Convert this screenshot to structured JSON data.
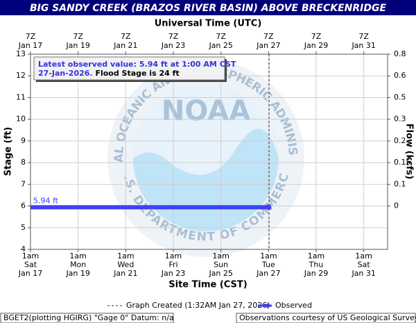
{
  "chart_data": {
    "type": "line",
    "title": "BIG SANDY CREEK (BRAZOS RIVER BASIN) ABOVE BRECKENRIDGE",
    "top_axis_label": "Universal Time (UTC)",
    "xlabel": "Site Time (CST)",
    "ylabel": "Stage (ft)",
    "y2label": "Flow (kcfs)",
    "xlim": [
      "2026-01-17T01:00",
      "2026-02-01T01:00"
    ],
    "xticks": [
      {
        "value": "2026-01-17T01:00",
        "label": [
          "1am",
          "Sat",
          "Jan 17"
        ]
      },
      {
        "value": "2026-01-19T01:00",
        "label": [
          "1am",
          "Mon",
          "Jan 19"
        ]
      },
      {
        "value": "2026-01-21T01:00",
        "label": [
          "1am",
          "Wed",
          "Jan 21"
        ]
      },
      {
        "value": "2026-01-23T01:00",
        "label": [
          "1am",
          "Fri",
          "Jan 23"
        ]
      },
      {
        "value": "2026-01-25T01:00",
        "label": [
          "1am",
          "Sun",
          "Jan 25"
        ]
      },
      {
        "value": "2026-01-27T01:00",
        "label": [
          "1am",
          "Tue",
          "Jan 27"
        ]
      },
      {
        "value": "2026-01-29T01:00",
        "label": [
          "1am",
          "Thu",
          "Jan 29"
        ]
      },
      {
        "value": "2026-01-31T01:00",
        "label": [
          "1am",
          "Sat",
          "Jan 31"
        ]
      }
    ],
    "x2ticks": [
      {
        "value": "2026-01-17T01:00",
        "label": [
          "7Z",
          "Jan 17"
        ]
      },
      {
        "value": "2026-01-19T01:00",
        "label": [
          "7Z",
          "Jan 19"
        ]
      },
      {
        "value": "2026-01-21T01:00",
        "label": [
          "7Z",
          "Jan 21"
        ]
      },
      {
        "value": "2026-01-23T01:00",
        "label": [
          "7Z",
          "Jan 23"
        ]
      },
      {
        "value": "2026-01-25T01:00",
        "label": [
          "7Z",
          "Jan 25"
        ]
      },
      {
        "value": "2026-01-27T01:00",
        "label": [
          "7Z",
          "Jan 27"
        ]
      },
      {
        "value": "2026-01-29T01:00",
        "label": [
          "7Z",
          "Jan 29"
        ]
      },
      {
        "value": "2026-01-31T01:00",
        "label": [
          "7Z",
          "Jan 31"
        ]
      }
    ],
    "ylim": [
      4,
      13
    ],
    "yticks": [
      4,
      5,
      6,
      7,
      8,
      9,
      10,
      11,
      12,
      13
    ],
    "y2ticks": [
      {
        "value": 0.8,
        "stage": 13
      },
      {
        "value": 0.6,
        "stage": 12
      },
      {
        "value": 0.5,
        "stage": 11
      },
      {
        "value": 0.3,
        "stage": 10
      },
      {
        "value": 0.2,
        "stage": 9
      },
      {
        "value": 0.15,
        "stage": 8
      },
      {
        "value": 0.1,
        "stage": 7
      },
      {
        "value": 0.0,
        "stage": 6
      }
    ],
    "grid": true,
    "series": [
      {
        "name": "Observed",
        "color": "#3f3ff5",
        "x": [
          "2026-01-17T01:00",
          "2026-01-27T01:00"
        ],
        "values": [
          5.94,
          5.94
        ],
        "value_labels": [
          "5.94 ft",
          null
        ]
      }
    ],
    "graph_created": {
      "x": "2026-01-27T01:32",
      "label": "Graph Created (1:32AM Jan 27, 2026)"
    },
    "annotation": {
      "line1": "Latest observed value: 5.94 ft at 1:00 AM CST",
      "line2_date": "27-Jan-2026.",
      "line2_rest": "Flood Stage is 24 ft"
    },
    "logo": {
      "name": "NOAA",
      "ring_top": "NATIONAL OCEANIC AND ATMOSPHERIC ADMINISTRATION",
      "ring_bottom": "U.S. DEPARTMENT OF COMMERCE"
    },
    "footer_left": "BGET2(plotting HGIRG) \"Gage 0\" Datum: n/a",
    "footer_right": "Observations courtesy of US Geological Survey"
  }
}
